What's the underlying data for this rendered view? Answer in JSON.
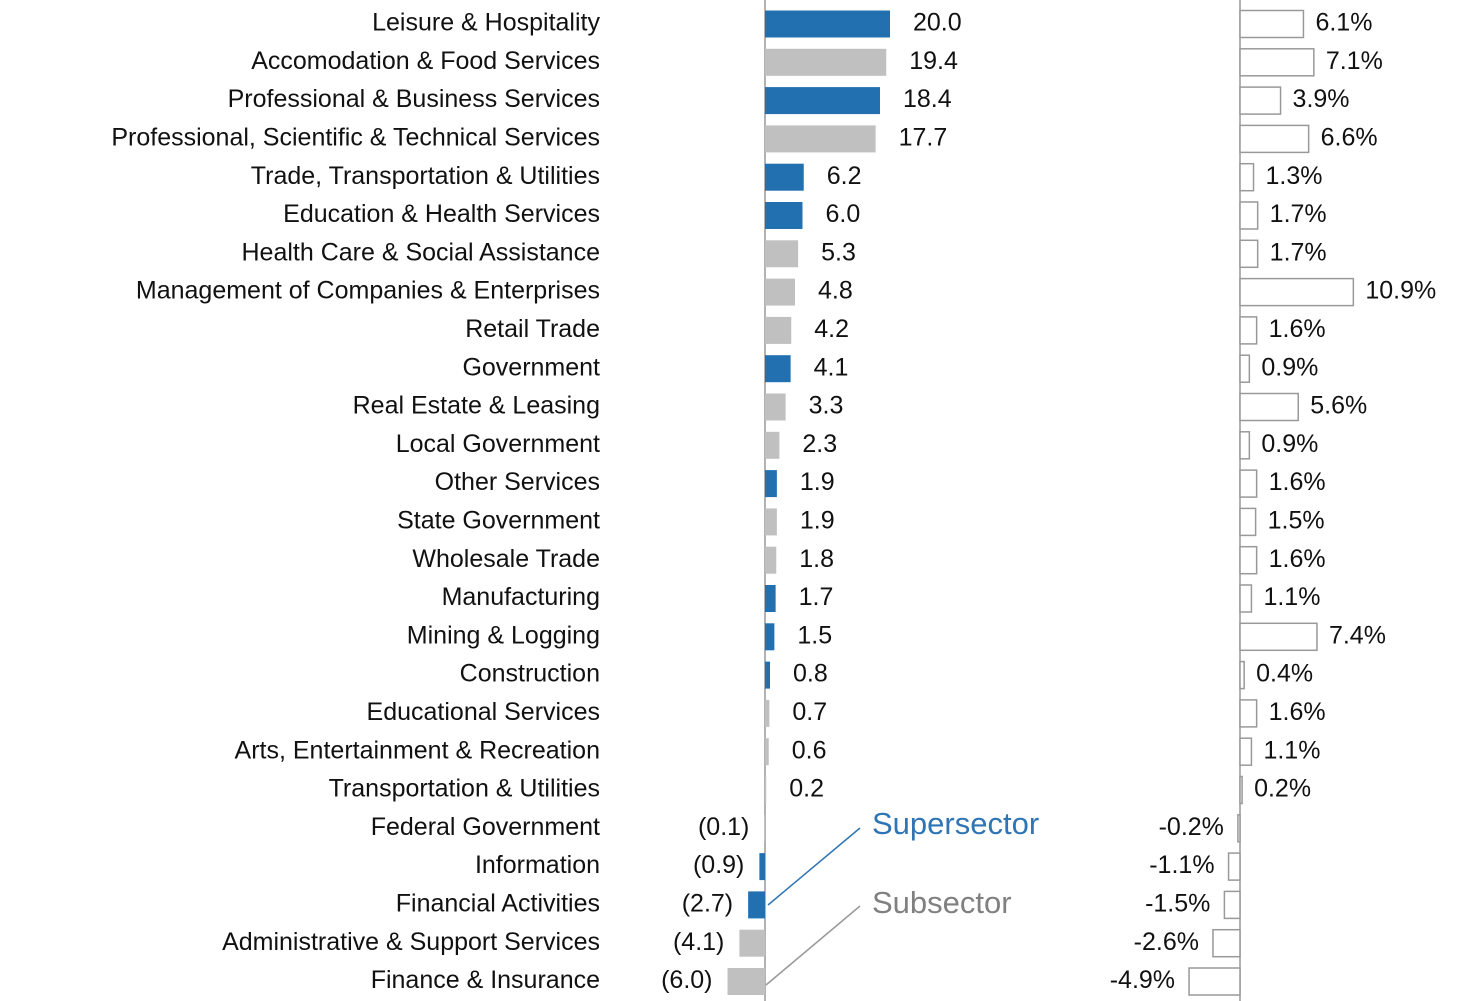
{
  "chart_data": [
    {
      "type": "bar",
      "orientation": "horizontal",
      "categories": [
        "Leisure & Hospitality",
        "Accomodation & Food Services",
        "Professional & Business Services",
        "Professional, Scientific & Technical Services",
        "Trade, Transportation & Utilities",
        "Education & Health Services",
        "Health Care & Social Assistance",
        "Management of Companies & Enterprises",
        "Retail Trade",
        "Government",
        "Real Estate & Leasing",
        "Local Government",
        "Other Services",
        "State Government",
        "Wholesale Trade",
        "Manufacturing",
        "Mining & Logging",
        "Construction",
        "Educational Services",
        "Arts, Entertainment & Recreation",
        "Transportation & Utilities",
        "Federal Government",
        "Information",
        "Financial Activities",
        "Administrative & Support Services",
        "Finance & Insurance"
      ],
      "values": [
        20.0,
        19.4,
        18.4,
        17.7,
        6.2,
        6.0,
        5.3,
        4.8,
        4.2,
        4.1,
        3.3,
        2.3,
        1.9,
        1.9,
        1.8,
        1.7,
        1.5,
        0.8,
        0.7,
        0.6,
        0.2,
        -0.1,
        -0.9,
        -2.7,
        -4.1,
        -6.0
      ],
      "value_labels": [
        "20.0",
        "19.4",
        "18.4",
        "17.7",
        "6.2",
        "6.0",
        "5.3",
        "4.8",
        "4.2",
        "4.1",
        "3.3",
        "2.3",
        "1.9",
        "1.9",
        "1.8",
        "1.7",
        "1.5",
        "0.8",
        "0.7",
        "0.6",
        "0.2",
        "(0.1)",
        "(0.9)",
        "(2.7)",
        "(4.1)",
        "(6.0)"
      ],
      "colors": [
        "#2270b0",
        "#c0c0c0",
        "#2270b0",
        "#c0c0c0",
        "#2270b0",
        "#2270b0",
        "#c0c0c0",
        "#c0c0c0",
        "#c0c0c0",
        "#2270b0",
        "#c0c0c0",
        "#c0c0c0",
        "#2270b0",
        "#c0c0c0",
        "#c0c0c0",
        "#2270b0",
        "#2270b0",
        "#2270b0",
        "#c0c0c0",
        "#c0c0c0",
        "#c0c0c0",
        "#c0c0c0",
        "#2270b0",
        "#2270b0",
        "#c0c0c0",
        "#c0c0c0"
      ],
      "xlim": [
        -10,
        30
      ],
      "annotations": [
        {
          "text": "Supersector",
          "color": "#2f75b5"
        },
        {
          "text": "Subsector",
          "color": "#808080"
        }
      ]
    },
    {
      "type": "bar",
      "orientation": "horizontal",
      "values": [
        6.1,
        7.1,
        3.9,
        6.6,
        1.3,
        1.7,
        1.7,
        10.9,
        1.6,
        0.9,
        5.6,
        0.9,
        1.6,
        1.5,
        1.6,
        1.1,
        7.4,
        0.4,
        1.6,
        1.1,
        0.2,
        -0.2,
        -1.1,
        -1.5,
        -2.6,
        -4.9
      ],
      "value_labels": [
        "6.1%",
        "7.1%",
        "3.9%",
        "6.6%",
        "1.3%",
        "1.7%",
        "1.7%",
        "10.9%",
        "1.6%",
        "0.9%",
        "5.6%",
        "0.9%",
        "1.6%",
        "1.5%",
        "1.6%",
        "1.1%",
        "7.4%",
        "0.4%",
        "1.6%",
        "1.1%",
        "0.2%",
        "-0.2%",
        "-1.1%",
        "-1.5%",
        "-2.6%",
        "-4.9%"
      ],
      "color": "#ffffff",
      "edgecolor": "#999999",
      "xlim": [
        -10,
        20
      ]
    }
  ]
}
